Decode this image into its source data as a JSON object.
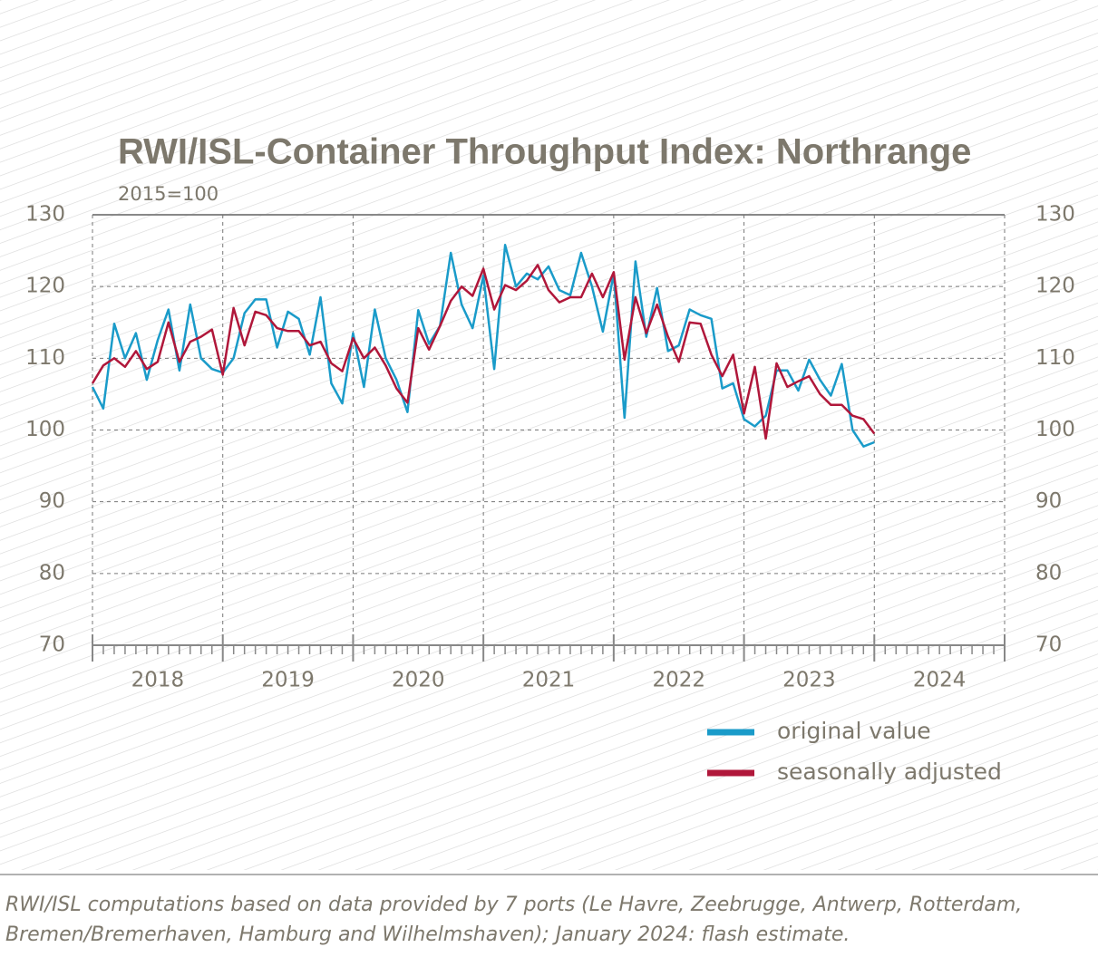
{
  "chart_data": {
    "type": "line",
    "title": "RWI/ISL-Container Throughput Index: Northrange",
    "subtitle": "2015=100",
    "note": "RWI/ISL computations based on data provided by 7 ports (Le Havre, Zeebrugge, Antwerp, Rotterdam, Bremen/Bremerhaven, Hamburg and Wilhelmshaven); January 2024: flash estimate.",
    "x": [
      2018.0,
      2018.083,
      2018.167,
      2018.25,
      2018.333,
      2018.417,
      2018.5,
      2018.583,
      2018.667,
      2018.75,
      2018.833,
      2018.917,
      2019.0,
      2019.083,
      2019.167,
      2019.25,
      2019.333,
      2019.417,
      2019.5,
      2019.583,
      2019.667,
      2019.75,
      2019.833,
      2019.917,
      2020.0,
      2020.083,
      2020.167,
      2020.25,
      2020.333,
      2020.417,
      2020.5,
      2020.583,
      2020.667,
      2020.75,
      2020.833,
      2020.917,
      2021.0,
      2021.083,
      2021.167,
      2021.25,
      2021.333,
      2021.417,
      2021.5,
      2021.583,
      2021.667,
      2021.75,
      2021.833,
      2021.917,
      2022.0,
      2022.083,
      2022.167,
      2022.25,
      2022.333,
      2022.417,
      2022.5,
      2022.583,
      2022.667,
      2022.75,
      2022.833,
      2022.917,
      2023.0,
      2023.083,
      2023.167,
      2023.25,
      2023.333,
      2023.417,
      2023.5,
      2023.583,
      2023.667,
      2023.75,
      2023.833,
      2023.917,
      2024.0
    ],
    "xlim": [
      2018,
      2025
    ],
    "xgrid": [
      2018,
      2019,
      2020,
      2021,
      2022,
      2023,
      2024,
      2025
    ],
    "xticks": [
      {
        "value": 2018.5,
        "label": "2018"
      },
      {
        "value": 2019.5,
        "label": "2019"
      },
      {
        "value": 2020.5,
        "label": "2020"
      },
      {
        "value": 2021.5,
        "label": "2021"
      },
      {
        "value": 2022.5,
        "label": "2022"
      },
      {
        "value": 2023.5,
        "label": "2023"
      },
      {
        "value": 2024.5,
        "label": "2024"
      }
    ],
    "ylim": [
      70,
      130
    ],
    "yticks": [
      70,
      80,
      90,
      100,
      110,
      120,
      130
    ],
    "y2lim": [
      70,
      130
    ],
    "y2ticks": [
      70,
      80,
      90,
      100,
      110,
      120,
      130
    ],
    "grid": true,
    "legend": "lower right",
    "series": [
      {
        "name": "original value",
        "color": "#1a9bc9",
        "values": [
          106,
          103,
          114.8,
          110,
          113.5,
          107,
          112.5,
          116.8,
          108.3,
          117.5,
          110,
          108.5,
          108,
          110,
          116.3,
          118.2,
          118.2,
          111.5,
          116.5,
          115.5,
          110.5,
          118.5,
          106.5,
          103.7,
          113.5,
          106,
          116.8,
          110,
          107,
          102.5,
          116.7,
          112,
          114.5,
          124.7,
          117.5,
          114.2,
          121.5,
          108.5,
          125.8,
          120,
          121.8,
          121,
          122.8,
          119.5,
          118.8,
          124.7,
          120,
          113.7,
          121.8,
          101.7,
          123.5,
          113,
          119.8,
          111,
          111.8,
          116.8,
          116,
          115.5,
          105.8,
          106.5,
          101.5,
          100.5,
          102,
          108.3,
          108.3,
          105.5,
          109.8,
          107,
          104.8,
          109.2,
          100,
          97.7,
          98.3
        ]
      },
      {
        "name": "seasonally adjusted",
        "color": "#b0173a",
        "values": [
          106.5,
          109,
          110,
          108.8,
          111,
          108.5,
          109.5,
          115,
          109.5,
          112.3,
          113,
          114,
          107.7,
          117,
          111.8,
          116.5,
          116,
          114.2,
          113.8,
          113.8,
          111.8,
          112.3,
          109.3,
          108.2,
          112.8,
          110,
          111.5,
          109,
          105.8,
          103.8,
          114.2,
          111.2,
          114.5,
          118,
          120,
          118.7,
          122.5,
          116.8,
          120.2,
          119.5,
          120.8,
          123,
          119.5,
          117.8,
          118.5,
          118.5,
          121.8,
          118.5,
          122,
          109.8,
          118.5,
          113.5,
          117.5,
          113,
          109.5,
          115,
          114.8,
          110.5,
          107.5,
          110.5,
          102.3,
          108.8,
          98.8,
          109.3,
          106,
          106.8,
          107.5,
          105,
          103.5,
          103.5,
          102,
          101.5,
          99.5
        ]
      }
    ]
  }
}
